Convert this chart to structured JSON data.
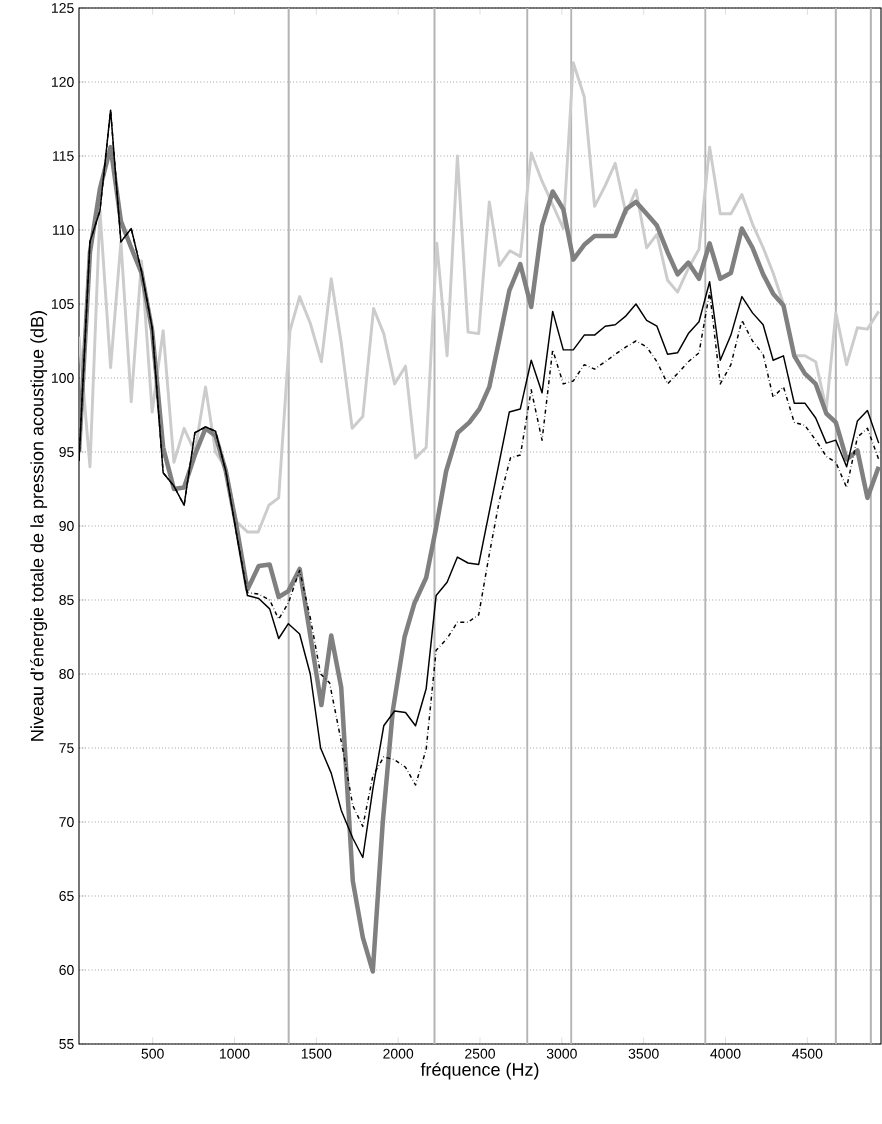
{
  "chart_data": {
    "type": "line",
    "xlabel": "fréquence (Hz)",
    "ylabel": "Niveau d’énergie totale de la pression acoustique (dB)",
    "xlim": [
      50,
      4950
    ],
    "ylim": [
      55,
      125
    ],
    "xticks": [
      500,
      1000,
      1500,
      2000,
      2500,
      3000,
      3500,
      4000,
      4500
    ],
    "yticks": [
      55,
      60,
      65,
      70,
      75,
      80,
      85,
      90,
      95,
      100,
      105,
      110,
      115,
      120,
      125
    ],
    "grid": "y",
    "ref_lines": [
      {
        "axis": "x",
        "value": 1331,
        "color": "#b4b4b4"
      },
      {
        "axis": "x",
        "value": 2222,
        "color": "#b4b4b4"
      },
      {
        "axis": "x",
        "value": 2789,
        "color": "#b4b4b4"
      },
      {
        "axis": "x",
        "value": 3057,
        "color": "#b4b4b4"
      },
      {
        "axis": "x",
        "value": 3877,
        "color": "#b4b4b4"
      },
      {
        "axis": "x",
        "value": 4674,
        "color": "#b4b4b4"
      },
      {
        "axis": "x",
        "value": 4888,
        "color": "#b4b4b4"
      }
    ],
    "series": [
      {
        "color": "#cccccc",
        "line_style": "solid",
        "x": [
          50,
          117,
          178,
          243,
          306,
          369,
          432,
          497,
          564,
          630,
          692,
          758,
          823,
          884,
          947,
          1012,
          1079,
          1145,
          1210,
          1270,
          1339,
          1398,
          1463,
          1531,
          1591,
          1652,
          1719,
          1784,
          1850,
          1912,
          1978,
          2045,
          2106,
          2171,
          2236,
          2299,
          2362,
          2427,
          2492,
          2557,
          2618,
          2683,
          2747,
          2813,
          2879,
          2944,
          3009,
          3070,
          3137,
          3200,
          3265,
          3326,
          3392,
          3453,
          3518,
          3581,
          3646,
          3707,
          3773,
          3838,
          3903,
          3968,
          4033,
          4100,
          4165,
          4230,
          4291,
          4354,
          4420,
          4485,
          4551,
          4616,
          4674,
          4740,
          4806,
          4867,
          4936
        ],
        "values": [
          102.8,
          94.0,
          111.3,
          100.7,
          109.2,
          98.4,
          107.9,
          97.7,
          103.2,
          94.3,
          96.6,
          95.0,
          99.4,
          95.0,
          93.9,
          90.3,
          89.6,
          89.6,
          91.4,
          91.9,
          103.2,
          105.5,
          103.7,
          101.1,
          106.7,
          102.4,
          96.6,
          97.4,
          104.7,
          103.0,
          99.6,
          100.8,
          94.6,
          95.3,
          109.1,
          101.5,
          115.0,
          103.1,
          103.0,
          111.9,
          107.6,
          108.6,
          108.2,
          115.2,
          113.3,
          111.7,
          110.1,
          121.3,
          119.0,
          111.6,
          113.0,
          114.5,
          111.1,
          112.7,
          108.8,
          109.7,
          106.6,
          105.8,
          107.4,
          108.7,
          115.6,
          111.1,
          111.1,
          112.4,
          110.4,
          108.8,
          107.1,
          105.0,
          101.5,
          101.5,
          101.1,
          97.9,
          104.4,
          100.9,
          103.4,
          103.3,
          104.5
        ]
      },
      {
        "color": "#808080",
        "line_style": "solid",
        "x": [
          50,
          117,
          178,
          243,
          306,
          369,
          432,
          497,
          564,
          630,
          692,
          758,
          823,
          884,
          947,
          1012,
          1079,
          1148,
          1215,
          1270,
          1329,
          1398,
          1531,
          1591,
          1652,
          1723,
          1784,
          1845,
          1906,
          1967,
          2039,
          2100,
          2171,
          2232,
          2293,
          2364,
          2435,
          2496,
          2557,
          2618,
          2679,
          2746,
          2813,
          2879,
          2944,
          3009,
          3070,
          3137,
          3200,
          3265,
          3326,
          3392,
          3453,
          3518,
          3581,
          3646,
          3707,
          3773,
          3838,
          3903,
          3968,
          4033,
          4100,
          4165,
          4230,
          4291,
          4354,
          4420,
          4485,
          4551,
          4616,
          4674,
          4740,
          4806,
          4867,
          4936
        ],
        "values": [
          95.0,
          108.5,
          112.8,
          115.6,
          110.6,
          108.8,
          107.1,
          103.2,
          95.3,
          92.5,
          92.6,
          94.8,
          96.6,
          96.1,
          93.7,
          90.0,
          85.7,
          87.3,
          87.4,
          85.2,
          85.6,
          87.1,
          77.9,
          82.6,
          79.1,
          66.0,
          62.2,
          59.9,
          70.0,
          77.5,
          82.5,
          84.8,
          86.5,
          89.9,
          93.7,
          96.3,
          97.0,
          97.9,
          99.4,
          102.6,
          105.9,
          107.7,
          104.8,
          110.3,
          112.6,
          111.4,
          108.0,
          109.0,
          109.6,
          109.6,
          109.6,
          111.4,
          111.9,
          111.1,
          110.3,
          108.5,
          107.0,
          107.8,
          106.7,
          109.1,
          106.7,
          107.1,
          110.1,
          108.8,
          107.0,
          105.7,
          104.9,
          101.5,
          100.3,
          99.6,
          97.6,
          97.0,
          94.5,
          95.1,
          91.9,
          94.0
        ]
      },
      {
        "color": "#000000",
        "line_style": "solid",
        "x": [
          50,
          117,
          178,
          243,
          306,
          369,
          432,
          497,
          564,
          630,
          692,
          758,
          823,
          884,
          947,
          1012,
          1079,
          1148,
          1215,
          1270,
          1329,
          1398,
          1463,
          1526,
          1591,
          1652,
          1723,
          1784,
          1845,
          1912,
          1978,
          2045,
          2106,
          2171,
          2232,
          2299,
          2362,
          2427,
          2492,
          2679,
          2746,
          2813,
          2879,
          2944,
          3009,
          3070,
          3137,
          3200,
          3265,
          3326,
          3392,
          3453,
          3518,
          3581,
          3646,
          3707,
          3773,
          3838,
          3903,
          3968,
          4033,
          4100,
          4165,
          4230,
          4291,
          4354,
          4420,
          4485,
          4551,
          4616,
          4674,
          4740,
          4806,
          4867,
          4936
        ],
        "values": [
          94.4,
          109.2,
          111.3,
          118.1,
          109.2,
          110.1,
          107.2,
          103.4,
          93.6,
          92.7,
          91.4,
          96.3,
          96.7,
          96.4,
          93.7,
          89.5,
          85.3,
          85.1,
          84.4,
          82.4,
          83.4,
          82.7,
          80.0,
          75.0,
          73.3,
          70.8,
          68.9,
          67.6,
          72.2,
          76.5,
          77.5,
          77.4,
          76.5,
          79.0,
          85.3,
          86.2,
          87.9,
          87.5,
          87.4,
          97.7,
          97.9,
          101.2,
          99.0,
          104.5,
          101.9,
          101.9,
          102.9,
          102.9,
          103.5,
          103.6,
          104.2,
          105.0,
          103.9,
          103.5,
          101.6,
          101.7,
          103.0,
          103.8,
          106.5,
          101.2,
          102.9,
          105.5,
          104.4,
          103.6,
          101.2,
          101.5,
          98.3,
          98.3,
          97.3,
          95.6,
          95.8,
          94.0,
          97.1,
          97.8,
          95.6
        ]
      },
      {
        "color": "#000000",
        "line_style": "dashdot",
        "x": [
          50,
          117,
          178,
          243,
          306,
          369,
          432,
          497,
          564,
          630,
          692,
          758,
          823,
          884,
          947,
          1012,
          1079,
          1148,
          1215,
          1270,
          1329,
          1398,
          1463,
          1526,
          1581,
          1662,
          1723,
          1784,
          1845,
          1912,
          1978,
          2045,
          2106,
          2171,
          2232,
          2299,
          2362,
          2427,
          2492,
          2557,
          2618,
          2686,
          2747,
          2813,
          2879,
          2944,
          3009,
          3070,
          3137,
          3200,
          3265,
          3326,
          3392,
          3453,
          3518,
          3581,
          3646,
          3707,
          3773,
          3838,
          3903,
          3968,
          4033,
          4100,
          4165,
          4230,
          4291,
          4354,
          4420,
          4485,
          4551,
          4616,
          4674,
          4740,
          4806,
          4867,
          4936
        ],
        "values": [
          94.4,
          109.2,
          111.3,
          118.1,
          109.2,
          110.1,
          107.2,
          103.4,
          93.6,
          92.7,
          91.4,
          96.3,
          96.7,
          96.4,
          93.7,
          89.5,
          85.5,
          85.4,
          85.0,
          83.7,
          84.8,
          87.0,
          83.8,
          80.0,
          79.4,
          74.9,
          71.1,
          69.7,
          73.1,
          74.4,
          74.2,
          73.7,
          72.5,
          74.9,
          81.6,
          82.4,
          83.5,
          83.5,
          84.0,
          88.1,
          91.7,
          94.6,
          94.8,
          99.2,
          95.8,
          101.9,
          99.6,
          99.8,
          100.9,
          100.6,
          101.1,
          101.6,
          102.1,
          102.5,
          102.1,
          101.1,
          99.6,
          100.3,
          101.1,
          101.7,
          105.8,
          99.6,
          100.9,
          103.9,
          102.5,
          101.6,
          98.7,
          99.4,
          97.0,
          96.8,
          95.8,
          94.7,
          94.3,
          92.6,
          96.0,
          96.6,
          94.5
        ]
      }
    ]
  }
}
